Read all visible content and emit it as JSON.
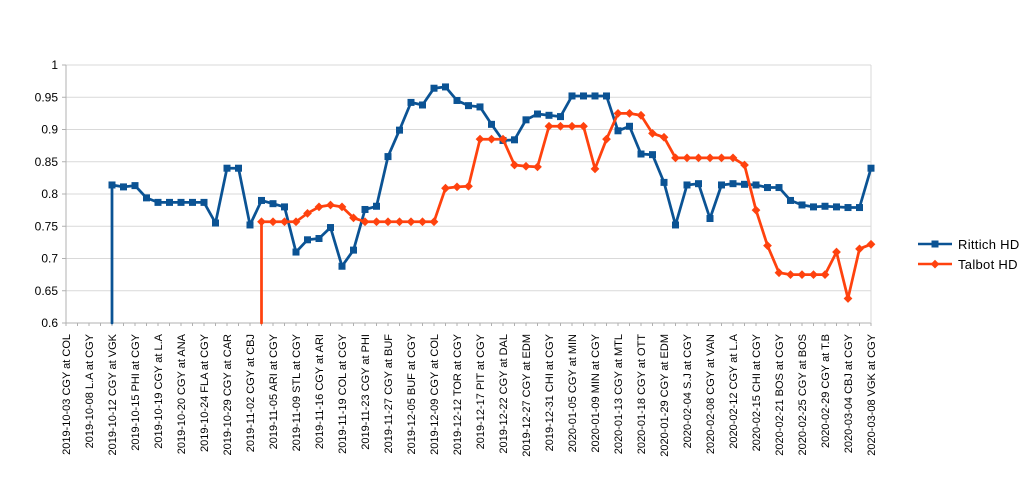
{
  "chart_data": {
    "type": "line",
    "title": "",
    "ylim": [
      0.6,
      1.0
    ],
    "grid": true,
    "legend_position": "right",
    "slots": 71,
    "label_every": 2,
    "y_ticks": [
      {
        "label": "1",
        "value": 1.0
      },
      {
        "label": "0.95",
        "value": 0.95
      },
      {
        "label": "0.9",
        "value": 0.9
      },
      {
        "label": "0.85",
        "value": 0.85
      },
      {
        "label": "0.8",
        "value": 0.8
      },
      {
        "label": "0.75",
        "value": 0.75
      },
      {
        "label": "0.7",
        "value": 0.7
      },
      {
        "label": "0.65",
        "value": 0.65
      },
      {
        "label": "0.6",
        "value": 0.6
      }
    ],
    "x_labels": [
      "2019-10-03 CGY at COL",
      "2019-10-08 L.A at CGY",
      "2019-10-12 CGY at VGK",
      "2019-10-15 PHI at CGY",
      "2019-10-19 CGY at L.A",
      "2019-10-20 CGY at ANA",
      "2019-10-24 FLA at CGY",
      "2019-10-29 CGY at CAR",
      "2019-11-02 CGY at CBJ",
      "2019-11-05 ARI at CGY",
      "2019-11-09 STL at CGY",
      "2019-11-16 CGY at ARI",
      "2019-11-19 COL at CGY",
      "2019-11-23 CGY at PHI",
      "2019-11-27 CGY at BUF",
      "2019-12-05 BUF at CGY",
      "2019-12-09 CGY at COL",
      "2019-12-12 TOR at CGY",
      "2019-12-17 PIT at CGY",
      "2019-12-22 CGY at DAL",
      "2019-12-27 CGY at EDM",
      "2019-12-31 CHI at CGY",
      "2020-01-05 CGY at MIN",
      "2020-01-09 MIN at CGY",
      "2020-01-13 CGY at MTL",
      "2020-01-18 CGY at OTT",
      "2020-01-29 CGY at EDM",
      "2020-02-04 S.J at CGY",
      "2020-02-08 CGY at VAN",
      "2020-02-12 CGY at L.A",
      "2020-02-15 CHI at CGY",
      "2020-02-21 BOS at CGY",
      "2020-02-25 CGY at BOS",
      "2020-02-29 CGY at T.B",
      "2020-03-04 CBJ at CGY",
      "2020-03-08 VGK at CGY"
    ],
    "series": [
      {
        "name": "Rittich HD",
        "color": "#0B5394",
        "marker": "square",
        "start_slot": 4,
        "entry_spike_from_bottom": true,
        "values": [
          0.814,
          0.811,
          0.813,
          0.794,
          0.787,
          0.787,
          0.787,
          0.787,
          0.787,
          0.755,
          0.84,
          0.84,
          0.752,
          0.79,
          0.785,
          0.78,
          0.71,
          0.729,
          0.731,
          0.748,
          0.688,
          0.713,
          0.776,
          0.781,
          0.858,
          0.899,
          0.942,
          0.938,
          0.964,
          0.966,
          0.945,
          0.937,
          0.935,
          0.908,
          0.883,
          0.884,
          0.915,
          0.924,
          0.922,
          0.92,
          0.952,
          0.952,
          0.952,
          0.952,
          0.898,
          0.905,
          0.862,
          0.861,
          0.818,
          0.752,
          0.814,
          0.816,
          0.762,
          0.814,
          0.816,
          0.815,
          0.814,
          0.81,
          0.81,
          0.79,
          0.783,
          0.78,
          0.781,
          0.78,
          0.779,
          0.779,
          0.84
        ]
      },
      {
        "name": "Talbot HD",
        "color": "#FF420E",
        "marker": "diamond",
        "start_slot": 17,
        "entry_spike_from_bottom": true,
        "values": [
          0.757,
          0.757,
          0.757,
          0.757,
          0.77,
          0.78,
          0.783,
          0.78,
          0.763,
          0.757,
          0.757,
          0.757,
          0.757,
          0.757,
          0.757,
          0.757,
          0.809,
          0.811,
          0.812,
          0.885,
          0.885,
          0.885,
          0.845,
          0.843,
          0.842,
          0.905,
          0.905,
          0.905,
          0.905,
          0.839,
          0.885,
          0.925,
          0.925,
          0.922,
          0.894,
          0.888,
          0.856,
          0.856,
          0.856,
          0.856,
          0.856,
          0.856,
          0.845,
          0.775,
          0.72,
          0.678,
          0.675,
          0.675,
          0.675,
          0.675,
          0.71,
          0.638,
          0.715,
          0.722
        ]
      }
    ],
    "colors": {
      "background": "#FFFFFF",
      "gridline": "#D9D9D9",
      "axis": "#B0B0B0",
      "tick": "#B0B0B0",
      "text": "#000000"
    }
  },
  "legend": {
    "entries": [
      "Rittich HD",
      "Talbot HD"
    ]
  }
}
